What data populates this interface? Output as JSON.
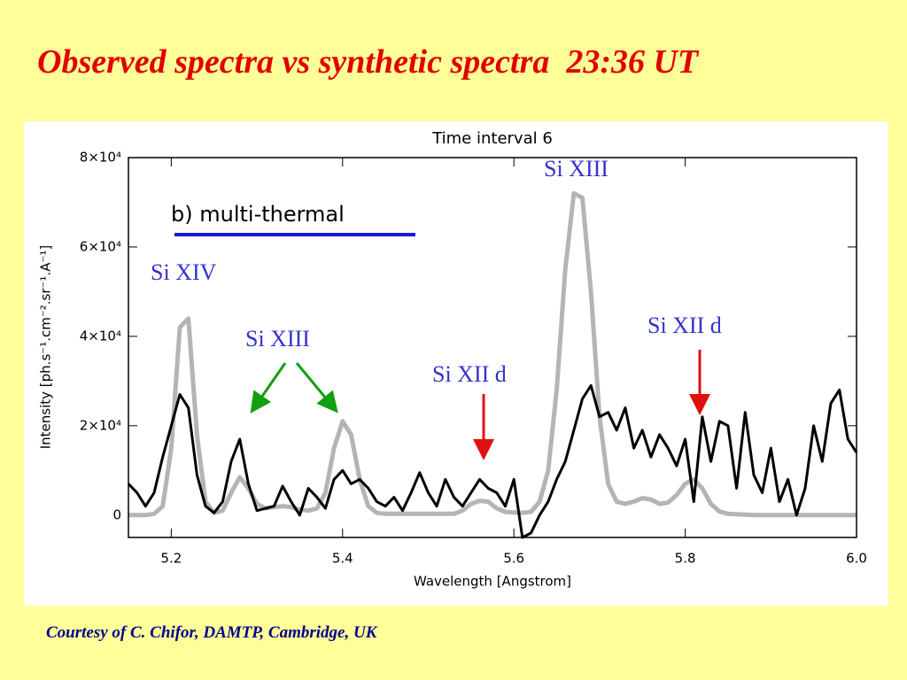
{
  "slide": {
    "title": "Observed spectra vs synthetic spectra  23:36 UT",
    "credit": "Courtesy of C. Chifor, DAMTP, Cambridge, UK"
  },
  "chart_data": {
    "type": "line",
    "title": "Time interval 6",
    "xlabel": "Wavelength  [Angstrom]",
    "ylabel": "Intensity  [ph.s⁻¹.cm⁻².sr⁻¹.A⁻¹]",
    "legend_text": "b) multi-thermal",
    "annotations": [
      {
        "text": "Si XIII"
      },
      {
        "text": "Si XIV"
      },
      {
        "text": "Si XIII"
      },
      {
        "text": "Si XII d"
      },
      {
        "text": "Si XII d"
      }
    ],
    "xlim": [
      5.15,
      6.0
    ],
    "ylim": [
      -5000,
      80000
    ],
    "xticks": [
      5.2,
      5.4,
      5.6,
      5.8,
      {
        "value": 6,
        "label": "6.0"
      }
    ],
    "yticks": [
      0,
      {
        "value": 20000,
        "label": "2×10⁴"
      },
      {
        "value": 40000,
        "label": "4×10⁴"
      },
      {
        "value": 60000,
        "label": "6×10⁴"
      },
      {
        "value": 80000,
        "label": "8×10⁴"
      }
    ],
    "x": [
      5.15,
      5.16,
      5.17,
      5.18,
      5.19,
      5.2,
      5.21,
      5.22,
      5.23,
      5.24,
      5.25,
      5.26,
      5.27,
      5.28,
      5.29,
      5.3,
      5.31,
      5.32,
      5.33,
      5.34,
      5.35,
      5.36,
      5.37,
      5.38,
      5.39,
      5.4,
      5.41,
      5.42,
      5.43,
      5.44,
      5.45,
      5.46,
      5.47,
      5.48,
      5.49,
      5.5,
      5.51,
      5.52,
      5.53,
      5.54,
      5.55,
      5.56,
      5.57,
      5.58,
      5.59,
      5.6,
      5.61,
      5.62,
      5.63,
      5.64,
      5.65,
      5.66,
      5.67,
      5.68,
      5.69,
      5.7,
      5.71,
      5.72,
      5.73,
      5.74,
      5.75,
      5.76,
      5.77,
      5.78,
      5.79,
      5.8,
      5.81,
      5.82,
      5.83,
      5.84,
      5.85,
      5.86,
      5.87,
      5.88,
      5.89,
      5.9,
      5.91,
      5.92,
      5.93,
      5.94,
      5.95,
      5.96,
      5.97,
      5.98,
      5.99,
      6.0
    ],
    "series": [
      {
        "color": "#b4b4b4",
        "values": [
          0,
          0,
          0,
          300,
          2000,
          15000,
          42000,
          44000,
          18000,
          3000,
          500,
          1000,
          5000,
          8500,
          6000,
          2500,
          1500,
          1800,
          2000,
          1800,
          1200,
          1000,
          1500,
          5000,
          15000,
          21000,
          18000,
          8000,
          2000,
          500,
          300,
          300,
          300,
          300,
          300,
          300,
          300,
          300,
          300,
          1000,
          2500,
          3200,
          3000,
          1500,
          700,
          600,
          500,
          700,
          3000,
          10000,
          28000,
          55000,
          72000,
          71000,
          50000,
          22000,
          7000,
          3000,
          2500,
          3000,
          3800,
          3500,
          2500,
          2800,
          4500,
          7000,
          8000,
          6000,
          2500,
          800,
          300,
          200,
          100,
          0,
          0,
          0,
          0,
          0,
          0,
          0,
          0,
          0,
          0,
          0,
          0,
          0
        ]
      },
      {
        "color": "#000000",
        "values": [
          7000,
          5000,
          2000,
          5000,
          13000,
          20000,
          27000,
          24000,
          9000,
          2000,
          500,
          3000,
          12000,
          17000,
          7000,
          1000,
          1500,
          2000,
          6500,
          3000,
          0,
          6000,
          4000,
          1500,
          8000,
          10000,
          7000,
          8000,
          6000,
          3000,
          2000,
          4000,
          1000,
          5000,
          9500,
          5000,
          2000,
          8000,
          4000,
          2000,
          5000,
          8000,
          6000,
          5000,
          2000,
          8000,
          -5000,
          -4000,
          0,
          3000,
          8000,
          12000,
          19000,
          26000,
          29000,
          22000,
          23000,
          19000,
          24000,
          15000,
          19000,
          13000,
          18000,
          15000,
          11000,
          17000,
          3000,
          22000,
          12000,
          21000,
          20000,
          6000,
          23000,
          9000,
          5000,
          15000,
          3000,
          8000,
          0,
          6000,
          20000,
          12000,
          25000,
          28000,
          17000,
          14000
        ]
      }
    ]
  }
}
